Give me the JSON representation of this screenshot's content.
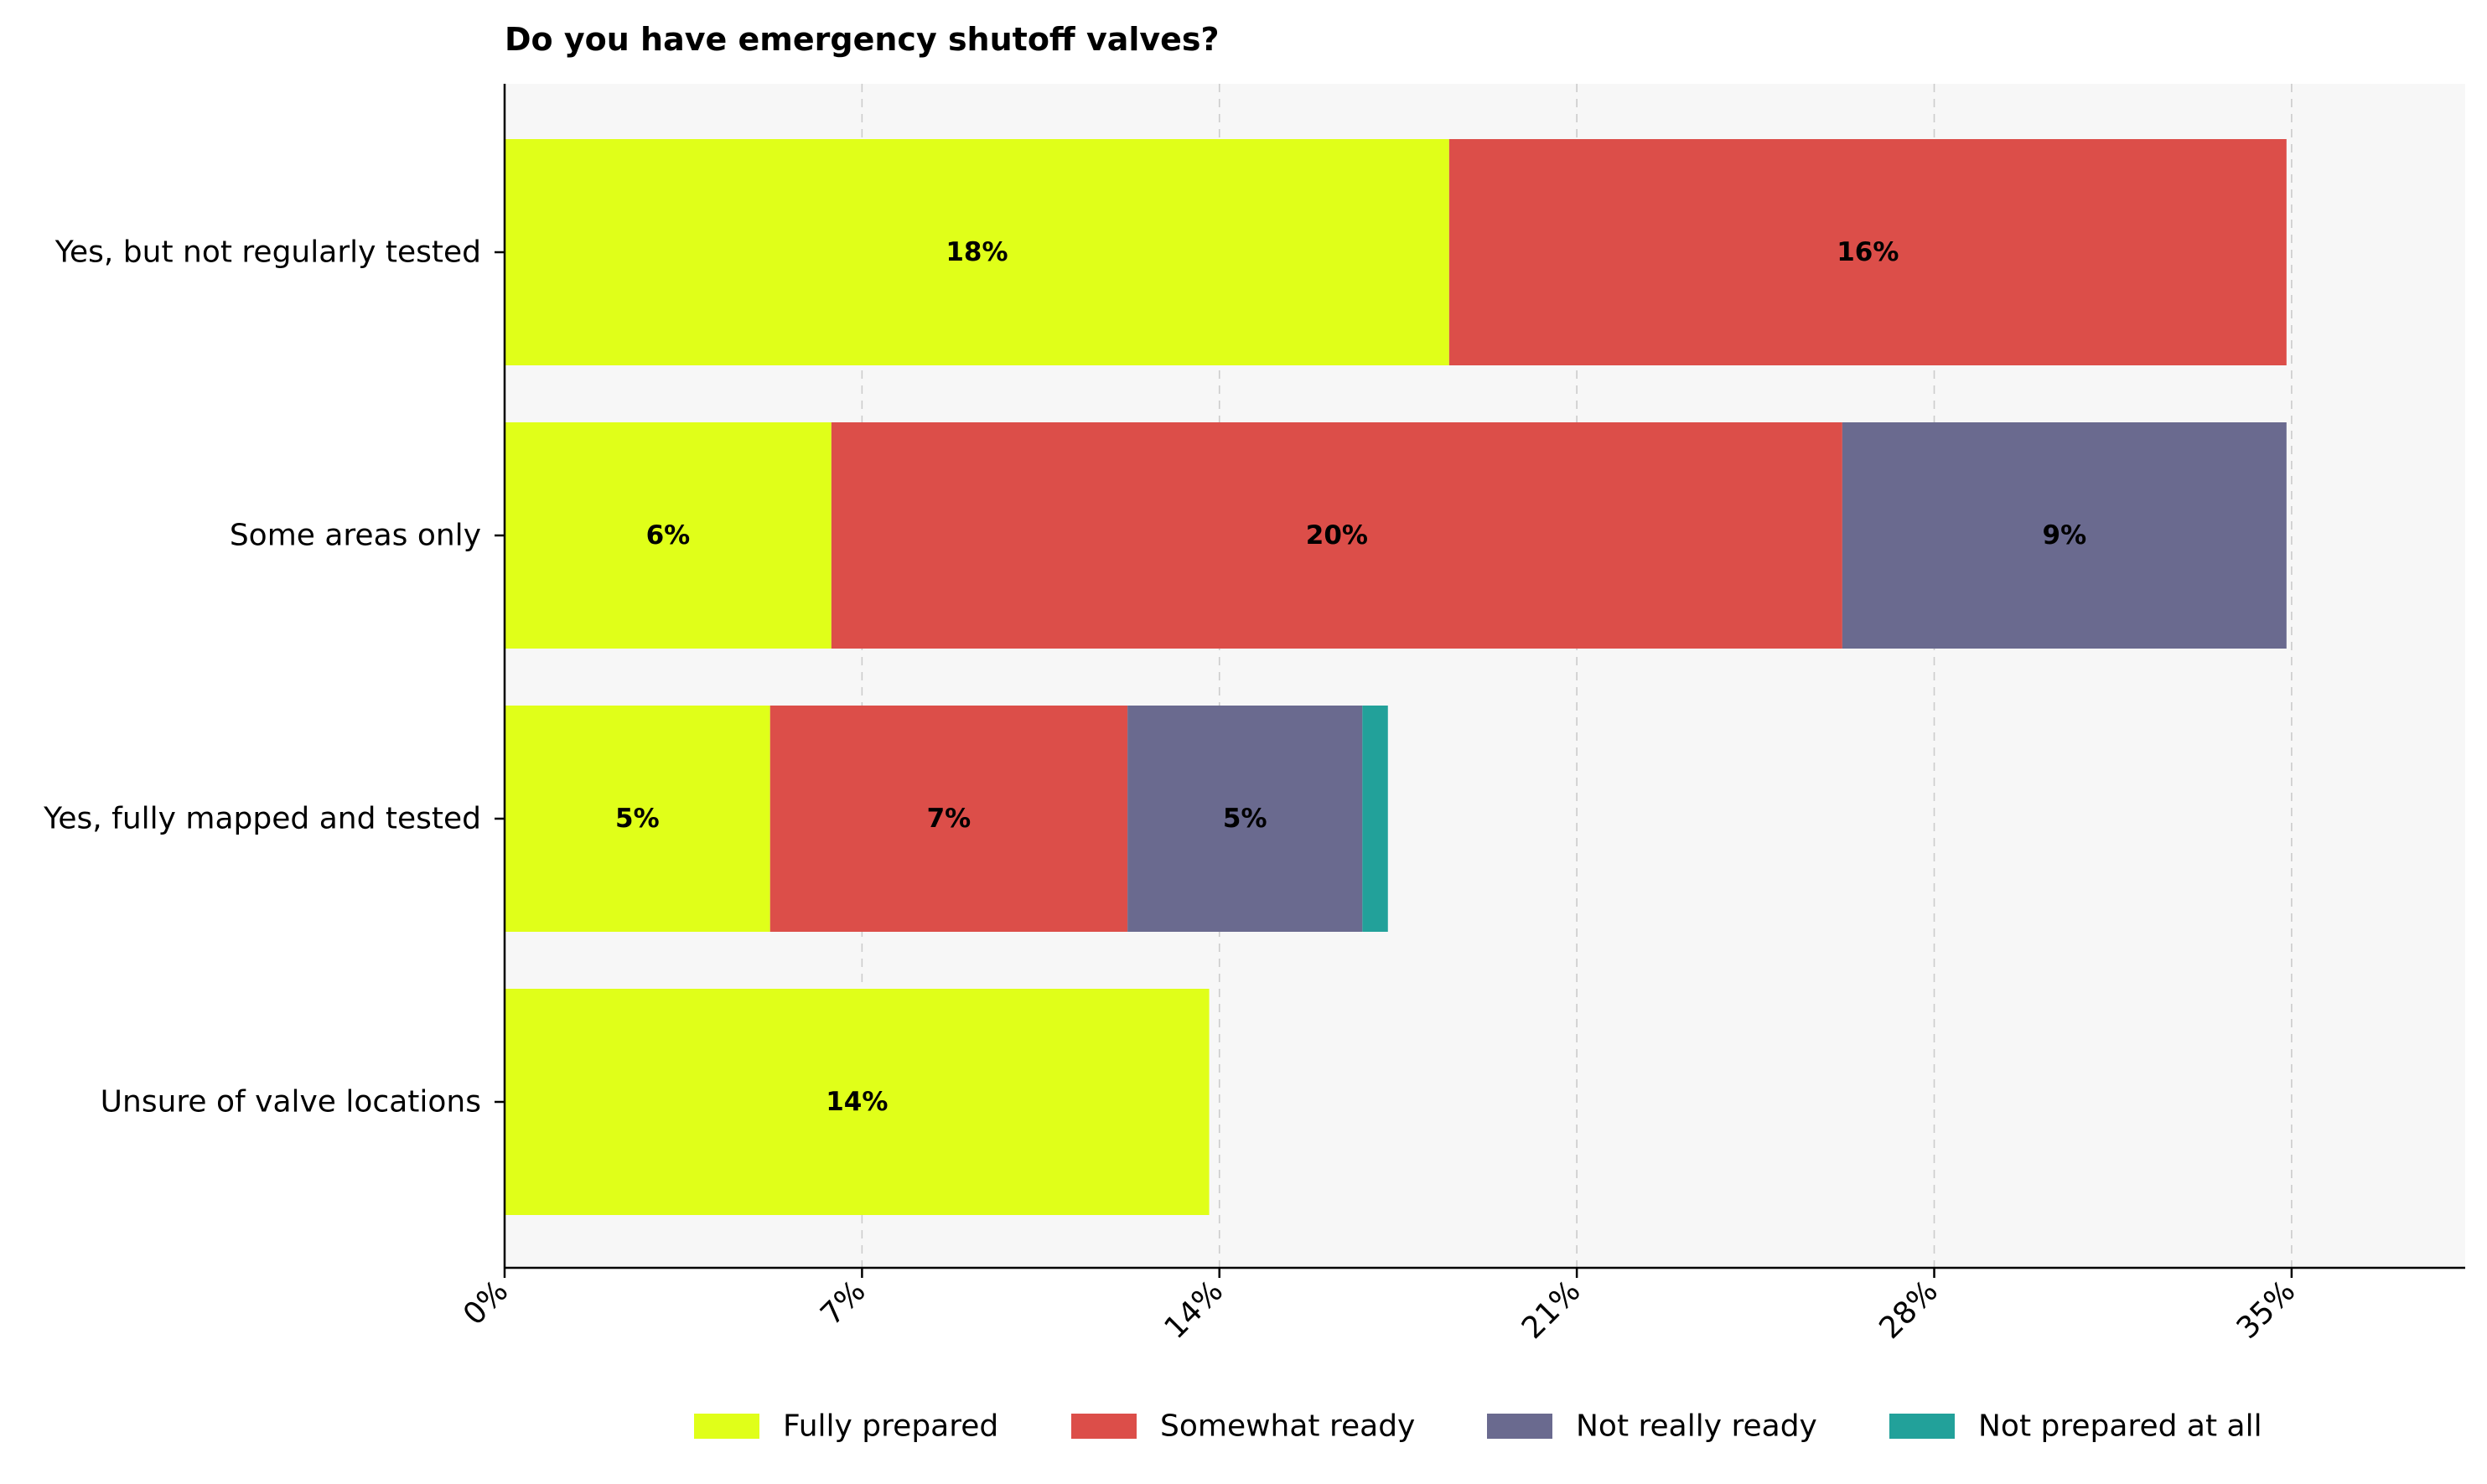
{
  "chart_data": {
    "type": "bar",
    "orientation": "horizontal",
    "stacked": true,
    "title": "Do you have emergency shutoff valves?",
    "xlabel": "",
    "ylabel": "",
    "categories": [
      "Yes, but not regularly tested",
      "Some areas only",
      "Yes, fully mapped and tested",
      "Unsure of valve locations"
    ],
    "series": [
      {
        "name": "Fully prepared",
        "color": "#e0ff19",
        "values": [
          18.5,
          6.4,
          5.2,
          13.8
        ]
      },
      {
        "name": "Somewhat ready",
        "color": "#dc4e49",
        "values": [
          16.4,
          19.8,
          7.0,
          0
        ]
      },
      {
        "name": "Not really ready",
        "color": "#6a6a8f",
        "values": [
          0,
          8.7,
          4.6,
          0
        ]
      },
      {
        "name": "Not prepared at all",
        "color": "#22a19a",
        "values": [
          0,
          0,
          0.5,
          0
        ]
      }
    ],
    "data_labels": [
      [
        "18%",
        "16%",
        "",
        ""
      ],
      [
        "6%",
        "20%",
        "9%",
        ""
      ],
      [
        "5%",
        "7%",
        "5%",
        ""
      ],
      [
        "14%",
        "",
        "",
        ""
      ]
    ],
    "xlim": [
      0,
      38.4
    ],
    "xticks": [
      0,
      7,
      14,
      21,
      28,
      35
    ],
    "xtick_labels": [
      "0%",
      "7%",
      "14%",
      "21%",
      "28%",
      "35%"
    ],
    "grid": "vertical dashed",
    "legend_position": "bottom-center",
    "plot_background": "#f7f7f7"
  }
}
